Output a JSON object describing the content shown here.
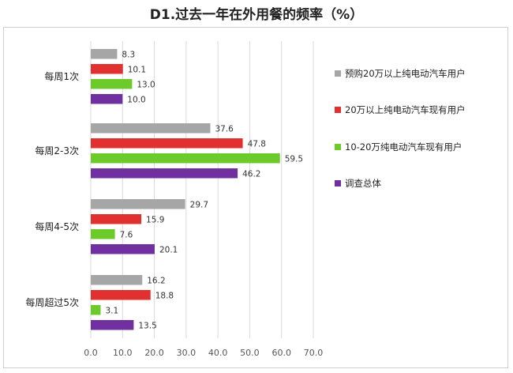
{
  "chart_data": {
    "type": "bar",
    "orientation": "horizontal",
    "title": "D1.过去一年在外用餐的频率（%）",
    "categories": [
      "每周1次",
      "每周2-3次",
      "每周4-5次",
      "每周超过5次"
    ],
    "series": [
      {
        "name": "预购20万以上纯电动汽车用户",
        "color": "#a6a6a6",
        "values": [
          8.3,
          37.6,
          29.7,
          16.2
        ]
      },
      {
        "name": "20万以上纯电动汽车现有用户",
        "color": "#e03030",
        "values": [
          10.1,
          47.8,
          15.9,
          18.8
        ]
      },
      {
        "name": "10-20万纯电动汽车现有用户",
        "color": "#6ccb2b",
        "values": [
          13.0,
          59.5,
          7.6,
          3.1
        ]
      },
      {
        "name": "调查总体",
        "color": "#7030a0",
        "values": [
          10.0,
          46.2,
          20.1,
          13.5
        ]
      }
    ],
    "value_labels": [
      [
        "8.3",
        "37.6",
        "29.7",
        "16.2"
      ],
      [
        "10.1",
        "47.8",
        "15.9",
        "18.8"
      ],
      [
        "13.0",
        "59.5",
        "7.6",
        "3.1"
      ],
      [
        "10.0",
        "46.2",
        "20.1",
        "13.5"
      ]
    ],
    "xlim": [
      0,
      70
    ],
    "xticks": [
      "0.0",
      "10.0",
      "20.0",
      "30.0",
      "40.0",
      "50.0",
      "60.0",
      "70.0"
    ],
    "grid": true,
    "legend_position": "right"
  }
}
